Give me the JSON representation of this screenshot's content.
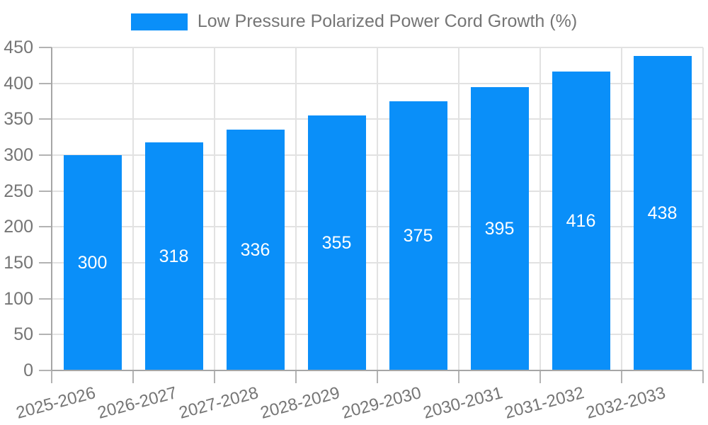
{
  "legend": {
    "label": "Low Pressure Polarized Power Cord Growth (%)"
  },
  "chart_data": {
    "type": "bar",
    "title": "Low Pressure Polarized Power Cord Growth (%)",
    "categories": [
      "2025-2026",
      "2026-2027",
      "2027-2028",
      "2028-2029",
      "2029-2030",
      "2030-2031",
      "2031-2032",
      "2032-2033"
    ],
    "series": [
      {
        "name": "Low Pressure Polarized Power Cord Growth (%)",
        "values": [
          300,
          318,
          336,
          355,
          375,
          395,
          416,
          438
        ]
      }
    ],
    "value_labels": [
      "300",
      "318",
      "336",
      "355",
      "375",
      "395",
      "416",
      "438"
    ],
    "xlabel": "",
    "ylabel": "",
    "ylim": [
      0,
      450
    ],
    "ytick_step": 50,
    "ytick_labels": [
      "0",
      "50",
      "100",
      "150",
      "200",
      "250",
      "300",
      "350",
      "400",
      "450"
    ],
    "grid": true,
    "legend_position": "top-center",
    "x_label_rotation_deg": -15,
    "colors": {
      "bar": "#0a8ff9",
      "value_label": "#ffffff",
      "tick_label": "#757575",
      "grid_line": "#e2e2e2",
      "axis_line": "#a6a6a6",
      "tick_mark": "#b3b3b3",
      "background": "#ffffff"
    }
  }
}
